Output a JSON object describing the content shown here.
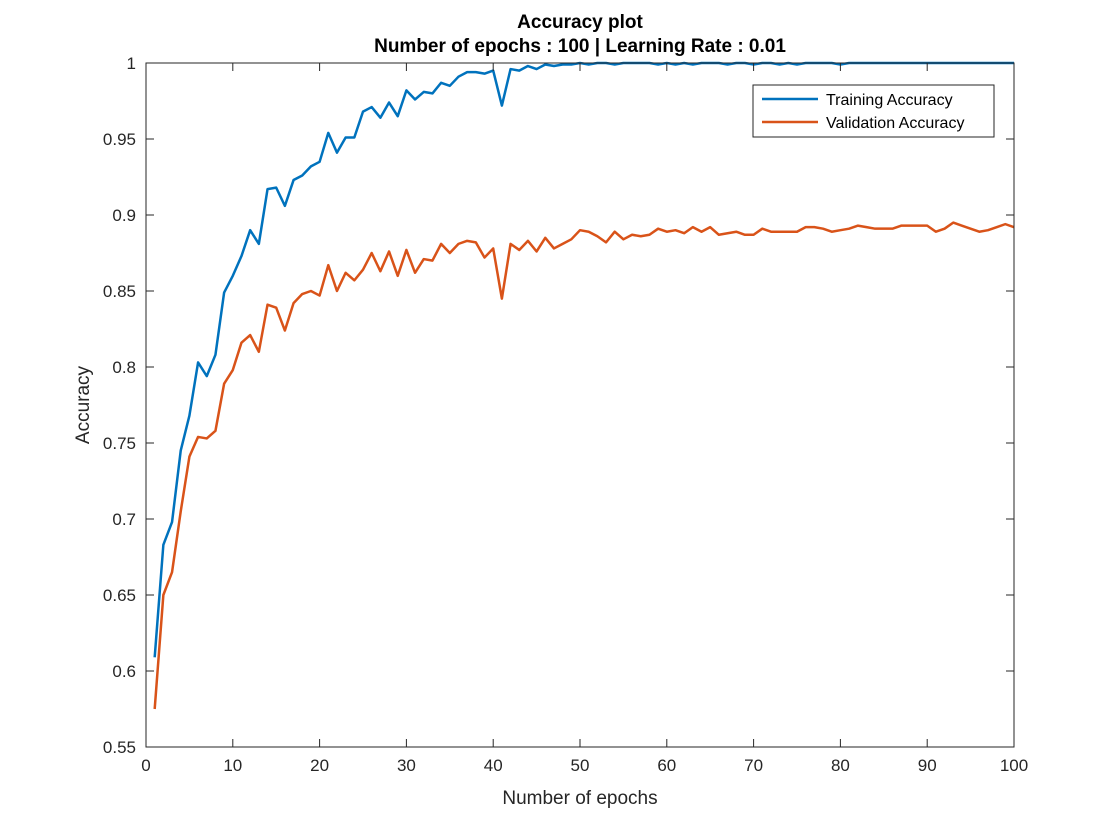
{
  "chart_data": {
    "type": "line",
    "title": "Accuracy plot",
    "subtitle": "Number of epochs : 100 | Learning Rate : 0.01",
    "xlabel": "Number of epochs",
    "ylabel": "Accuracy",
    "xlim": [
      0,
      100
    ],
    "ylim": [
      0.55,
      1
    ],
    "xticks": [
      0,
      10,
      20,
      30,
      40,
      50,
      60,
      70,
      80,
      90,
      100
    ],
    "yticks": [
      0.55,
      0.6,
      0.65,
      0.7,
      0.75,
      0.8,
      0.85,
      0.9,
      0.95,
      1
    ],
    "ytick_labels": [
      "0.55",
      "0.6",
      "0.65",
      "0.7",
      "0.75",
      "0.8",
      "0.85",
      "0.9",
      "0.95",
      "1"
    ],
    "grid": false,
    "legend_position": "top-right",
    "x": [
      1,
      2,
      3,
      4,
      5,
      6,
      7,
      8,
      9,
      10,
      11,
      12,
      13,
      14,
      15,
      16,
      17,
      18,
      19,
      20,
      21,
      22,
      23,
      24,
      25,
      26,
      27,
      28,
      29,
      30,
      31,
      32,
      33,
      34,
      35,
      36,
      37,
      38,
      39,
      40,
      41,
      42,
      43,
      44,
      45,
      46,
      47,
      48,
      49,
      50,
      51,
      52,
      53,
      54,
      55,
      56,
      57,
      58,
      59,
      60,
      61,
      62,
      63,
      64,
      65,
      66,
      67,
      68,
      69,
      70,
      71,
      72,
      73,
      74,
      75,
      76,
      77,
      78,
      79,
      80,
      81,
      82,
      83,
      84,
      85,
      86,
      87,
      88,
      89,
      90,
      91,
      92,
      93,
      94,
      95,
      96,
      97,
      98,
      99,
      100
    ],
    "series": [
      {
        "name": "Training Accuracy",
        "color": "#0072BD",
        "values": [
          0.609,
          0.683,
          0.698,
          0.745,
          0.768,
          0.803,
          0.794,
          0.808,
          0.849,
          0.86,
          0.873,
          0.89,
          0.881,
          0.917,
          0.918,
          0.906,
          0.923,
          0.926,
          0.932,
          0.935,
          0.954,
          0.941,
          0.951,
          0.951,
          0.968,
          0.971,
          0.964,
          0.974,
          0.965,
          0.982,
          0.976,
          0.981,
          0.98,
          0.987,
          0.985,
          0.991,
          0.994,
          0.994,
          0.993,
          0.995,
          0.972,
          0.996,
          0.995,
          0.998,
          0.996,
          0.999,
          0.998,
          0.999,
          0.999,
          1.0,
          0.999,
          1.0,
          1.0,
          0.999,
          1.0,
          1.0,
          1.0,
          1.0,
          0.999,
          1.0,
          0.999,
          1.0,
          0.999,
          1.0,
          1.0,
          1.0,
          0.999,
          1.0,
          1.0,
          0.999,
          1.0,
          1.0,
          0.999,
          1.0,
          0.999,
          1.0,
          1.0,
          1.0,
          1.0,
          0.999,
          1.0,
          1.0,
          1.0,
          1.0,
          1.0,
          1.0,
          1.0,
          1.0,
          1.0,
          1.0,
          1.0,
          1.0,
          1.0,
          1.0,
          1.0,
          1.0,
          1.0,
          1.0,
          1.0,
          1.0
        ]
      },
      {
        "name": "Validation Accuracy",
        "color": "#D95319",
        "values": [
          0.575,
          0.65,
          0.665,
          0.705,
          0.741,
          0.754,
          0.753,
          0.758,
          0.789,
          0.798,
          0.816,
          0.821,
          0.81,
          0.841,
          0.839,
          0.824,
          0.842,
          0.848,
          0.85,
          0.847,
          0.867,
          0.85,
          0.862,
          0.857,
          0.864,
          0.875,
          0.863,
          0.876,
          0.86,
          0.877,
          0.862,
          0.871,
          0.87,
          0.881,
          0.875,
          0.881,
          0.883,
          0.882,
          0.872,
          0.878,
          0.845,
          0.881,
          0.877,
          0.883,
          0.876,
          0.885,
          0.878,
          0.881,
          0.884,
          0.89,
          0.889,
          0.886,
          0.882,
          0.889,
          0.884,
          0.887,
          0.886,
          0.887,
          0.891,
          0.889,
          0.89,
          0.888,
          0.892,
          0.889,
          0.892,
          0.887,
          0.888,
          0.889,
          0.887,
          0.887,
          0.891,
          0.889,
          0.889,
          0.889,
          0.889,
          0.892,
          0.892,
          0.891,
          0.889,
          0.89,
          0.891,
          0.893,
          0.892,
          0.891,
          0.891,
          0.891,
          0.893,
          0.893,
          0.893,
          0.893,
          0.889,
          0.891,
          0.895,
          0.893,
          0.891,
          0.889,
          0.89,
          0.892,
          0.894,
          0.892
        ]
      }
    ]
  }
}
